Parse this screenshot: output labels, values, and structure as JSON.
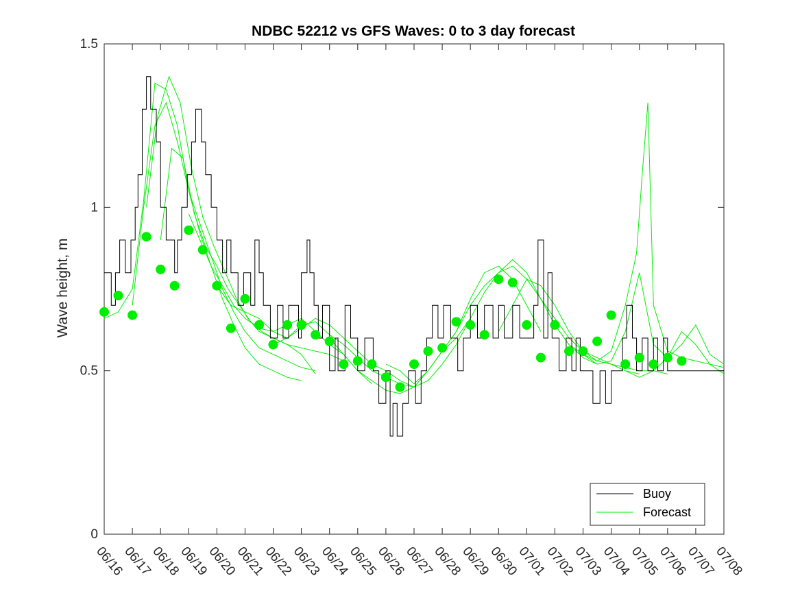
{
  "chart_data": {
    "type": "line",
    "title": "NDBC 52212 vs GFS Waves: 0 to 3 day forecast",
    "xlabel": "",
    "ylabel": "Wave height, m",
    "ylim": [
      0,
      1.5
    ],
    "yticks": [
      "0",
      "0.5",
      "1",
      "1.5"
    ],
    "xlim": [
      0,
      22
    ],
    "xticks": [
      "06/16",
      "06/17",
      "06/18",
      "06/19",
      "06/20",
      "06/21",
      "06/22",
      "06/23",
      "06/24",
      "06/25",
      "06/26",
      "06/27",
      "06/28",
      "06/29",
      "06/30",
      "07/01",
      "07/02",
      "07/03",
      "07/04",
      "07/05",
      "07/06",
      "07/07",
      "07/08"
    ],
    "grid": false,
    "legend_position": "bottom-right",
    "colors": {
      "buoy": "#000000",
      "forecast": "#00ee00"
    },
    "series": [
      {
        "name": "Buoy",
        "kind": "step",
        "x": [
          0,
          0.25,
          0.4,
          0.55,
          0.75,
          0.95,
          1.1,
          1.2,
          1.35,
          1.5,
          1.65,
          1.85,
          2.0,
          2.2,
          2.5,
          2.6,
          2.75,
          2.95,
          3.1,
          3.25,
          3.45,
          3.6,
          3.8,
          4.0,
          4.2,
          4.35,
          4.5,
          4.75,
          4.95,
          5.2,
          5.35,
          5.5,
          5.65,
          5.9,
          6.15,
          6.35,
          6.55,
          6.9,
          7.0,
          7.2,
          7.3,
          7.45,
          7.6,
          7.75,
          8.0,
          8.2,
          8.3,
          8.55,
          8.75,
          9.0,
          9.25,
          9.55,
          9.75,
          10.0,
          10.15,
          10.25,
          10.4,
          10.6,
          10.8,
          11.05,
          11.25,
          11.45,
          11.65,
          11.85,
          12.05,
          12.3,
          12.55,
          12.75,
          13.0,
          13.25,
          13.5,
          13.8,
          14.0,
          14.2,
          14.5,
          14.75,
          15.0,
          15.25,
          15.4,
          15.6,
          15.75,
          15.9,
          16.15,
          16.4,
          16.6,
          16.75,
          16.9,
          17.1,
          17.35,
          17.6,
          17.8,
          18.0,
          18.2,
          18.4,
          18.55,
          18.75,
          18.9,
          19.1,
          19.3,
          19.5,
          19.65,
          19.85,
          20.0,
          20.2,
          20.5,
          20.8,
          21.0,
          21.5,
          22.0
        ],
        "values": [
          0.8,
          0.7,
          0.8,
          0.9,
          0.8,
          0.9,
          1.0,
          1.1,
          1.3,
          1.4,
          1.3,
          1.2,
          1.0,
          0.9,
          0.8,
          0.9,
          1.0,
          1.1,
          1.2,
          1.3,
          1.2,
          1.1,
          1.0,
          0.9,
          0.8,
          0.9,
          0.8,
          0.7,
          0.8,
          0.7,
          0.9,
          0.8,
          0.7,
          0.6,
          0.7,
          0.6,
          0.7,
          0.6,
          0.8,
          0.9,
          0.8,
          0.7,
          0.6,
          0.7,
          0.5,
          0.6,
          0.5,
          0.7,
          0.6,
          0.5,
          0.6,
          0.5,
          0.4,
          0.5,
          0.3,
          0.4,
          0.3,
          0.4,
          0.5,
          0.4,
          0.5,
          0.6,
          0.7,
          0.6,
          0.7,
          0.6,
          0.5,
          0.6,
          0.7,
          0.6,
          0.7,
          0.6,
          0.7,
          0.6,
          0.7,
          0.6,
          0.6,
          0.7,
          0.9,
          0.6,
          0.8,
          0.6,
          0.5,
          0.6,
          0.5,
          0.6,
          0.5,
          0.5,
          0.4,
          0.5,
          0.4,
          0.5,
          0.5,
          0.6,
          0.7,
          0.6,
          0.5,
          0.6,
          0.5,
          0.6,
          0.5,
          0.6,
          0.5,
          0.5,
          0.5,
          0.5,
          0.5,
          0.5,
          0.5
        ]
      },
      {
        "name": "Forecast",
        "runs": [
          {
            "x": [
              0,
              0.5,
              1.0,
              1.4,
              1.8,
              2.2,
              2.6,
              3.0,
              3.4,
              3.8,
              4.2,
              4.6,
              5.0,
              5.5,
              6.0,
              6.5,
              7.0
            ],
            "values": [
              0.66,
              0.68,
              0.75,
              1.02,
              1.38,
              1.36,
              1.25,
              1.05,
              0.92,
              0.82,
              0.72,
              0.64,
              0.57,
              0.52,
              0.5,
              0.48,
              0.47
            ]
          },
          {
            "x": [
              1.0,
              1.4,
              1.8,
              2.2,
              2.6,
              3.0,
              3.4,
              3.8,
              4.2,
              4.6,
              5.0,
              5.5,
              6.0,
              6.5,
              7.0,
              7.5
            ],
            "values": [
              0.7,
              1.0,
              1.25,
              1.32,
              1.2,
              1.05,
              0.95,
              0.85,
              0.75,
              0.68,
              0.62,
              0.57,
              0.55,
              0.53,
              0.51,
              0.5
            ]
          },
          {
            "x": [
              1.5,
              1.9,
              2.3,
              2.7,
              3.1,
              3.5,
              3.9,
              4.3,
              4.7,
              5.1,
              5.5,
              6.0,
              6.5,
              7.0,
              7.5
            ],
            "values": [
              1.0,
              1.28,
              1.4,
              1.32,
              1.12,
              0.97,
              0.88,
              0.8,
              0.72,
              0.66,
              0.62,
              0.6,
              0.58,
              0.55,
              0.49
            ]
          },
          {
            "x": [
              2.0,
              2.4,
              2.8,
              3.2,
              3.6,
              4.0,
              4.4,
              4.8,
              5.2,
              5.6,
              6.0,
              6.5,
              7.0,
              7.5,
              8.0,
              8.5
            ],
            "values": [
              0.9,
              1.18,
              1.15,
              0.98,
              0.88,
              0.82,
              0.75,
              0.7,
              0.65,
              0.62,
              0.6,
              0.58,
              0.57,
              0.56,
              0.55,
              0.53
            ]
          },
          {
            "x": [
              3.0,
              3.4,
              3.8,
              4.2,
              4.6,
              5.0,
              5.5,
              6.0,
              6.5,
              7.0,
              7.5,
              8.0,
              8.5,
              9.0,
              9.5
            ],
            "values": [
              0.98,
              0.9,
              0.82,
              0.76,
              0.7,
              0.66,
              0.63,
              0.62,
              0.64,
              0.66,
              0.62,
              0.58,
              0.55,
              0.5,
              0.46
            ]
          },
          {
            "x": [
              4.0,
              4.5,
              5.0,
              5.5,
              6.0,
              6.5,
              7.0,
              7.5,
              8.0,
              8.5,
              9.0,
              9.5,
              10.0,
              10.5,
              11.0
            ],
            "values": [
              0.76,
              0.7,
              0.68,
              0.66,
              0.62,
              0.6,
              0.63,
              0.66,
              0.64,
              0.6,
              0.56,
              0.52,
              0.5,
              0.47,
              0.45
            ]
          },
          {
            "x": [
              6.0,
              6.5,
              7.0,
              7.5,
              8.0,
              8.5,
              9.0,
              9.5,
              10.0,
              10.5,
              11.0,
              11.5,
              12.0,
              12.5,
              13.0
            ],
            "values": [
              0.58,
              0.6,
              0.64,
              0.65,
              0.61,
              0.58,
              0.54,
              0.5,
              0.48,
              0.46,
              0.45,
              0.47,
              0.52,
              0.58,
              0.66
            ]
          },
          {
            "x": [
              8.0,
              8.5,
              9.0,
              9.5,
              10.0,
              10.5,
              11.0,
              11.5,
              12.0,
              12.5,
              13.0,
              13.5,
              14.0,
              14.5,
              15.0,
              15.5
            ],
            "values": [
              0.6,
              0.55,
              0.5,
              0.47,
              0.44,
              0.43,
              0.45,
              0.5,
              0.56,
              0.62,
              0.72,
              0.8,
              0.82,
              0.78,
              0.7,
              0.62
            ]
          },
          {
            "x": [
              10.0,
              10.5,
              11.0,
              11.5,
              12.0,
              12.5,
              13.0,
              13.5,
              14.0,
              14.5,
              15.0,
              15.5,
              16.0,
              16.5,
              17.0,
              17.5
            ],
            "values": [
              0.52,
              0.5,
              0.46,
              0.5,
              0.56,
              0.62,
              0.7,
              0.76,
              0.8,
              0.82,
              0.78,
              0.72,
              0.64,
              0.58,
              0.54,
              0.52
            ]
          },
          {
            "x": [
              12.0,
              12.5,
              13.0,
              13.5,
              14.0,
              14.5,
              15.0,
              15.5,
              16.0,
              16.5,
              17.0,
              17.5,
              18.0,
              18.5,
              19.0
            ],
            "values": [
              0.56,
              0.6,
              0.66,
              0.74,
              0.8,
              0.84,
              0.8,
              0.72,
              0.66,
              0.6,
              0.56,
              0.54,
              0.52,
              0.5,
              0.49
            ]
          },
          {
            "x": [
              14.0,
              14.5,
              15.0,
              15.5,
              16.0,
              16.5,
              17.0,
              17.5,
              18.0,
              18.5,
              19.0,
              19.5,
              20.0
            ],
            "values": [
              0.62,
              0.7,
              0.78,
              0.76,
              0.7,
              0.62,
              0.56,
              0.53,
              0.52,
              0.51,
              0.5,
              0.5,
              0.49
            ]
          },
          {
            "x": [
              16.0,
              16.5,
              17.0,
              17.5,
              18.0,
              18.5,
              18.9,
              19.1,
              19.3,
              19.5,
              20.0,
              20.5,
              21.0,
              21.5,
              22.0
            ],
            "values": [
              0.64,
              0.58,
              0.55,
              0.53,
              0.56,
              0.7,
              0.86,
              1.1,
              1.32,
              0.7,
              0.56,
              0.54,
              0.53,
              0.52,
              0.51
            ]
          },
          {
            "x": [
              17.0,
              17.5,
              18.0,
              18.5,
              19.0,
              19.5,
              20.0,
              20.5,
              21.0,
              21.5,
              22.0
            ],
            "values": [
              0.55,
              0.52,
              0.53,
              0.62,
              0.8,
              0.58,
              0.54,
              0.58,
              0.64,
              0.55,
              0.52
            ]
          },
          {
            "x": [
              18.0,
              18.5,
              19.0,
              19.5,
              20.0,
              20.5,
              21.0,
              21.5,
              22.0
            ],
            "values": [
              0.52,
              0.5,
              0.48,
              0.5,
              0.54,
              0.62,
              0.58,
              0.52,
              0.49
            ]
          }
        ],
        "daily_points": {
          "x": [
            0,
            0.5,
            1,
            1.5,
            2,
            2.5,
            3,
            3.5,
            4,
            4.5,
            5,
            5.5,
            6,
            6.5,
            7,
            7.5,
            8,
            8.5,
            9,
            9.5,
            10,
            10.5,
            11,
            11.5,
            12,
            12.5,
            13,
            13.5,
            14,
            14.5,
            15,
            15.5,
            16,
            16.5,
            17,
            17.5,
            18,
            18.5,
            19,
            19.5,
            20,
            20.5,
            21
          ],
          "values": [
            0.68,
            0.73,
            0.67,
            0.91,
            0.81,
            0.76,
            0.93,
            0.87,
            0.76,
            0.63,
            0.72,
            0.64,
            0.58,
            0.64,
            0.64,
            0.61,
            0.59,
            0.52,
            0.53,
            0.52,
            0.48,
            0.45,
            0.52,
            0.56,
            0.57,
            0.65,
            0.64,
            0.61,
            0.78,
            0.77,
            0.64,
            0.54,
            0.64,
            0.56,
            0.56,
            0.59,
            0.67,
            0.52,
            0.54,
            0.52,
            0.54,
            0.53,
            null
          ]
        }
      }
    ]
  }
}
